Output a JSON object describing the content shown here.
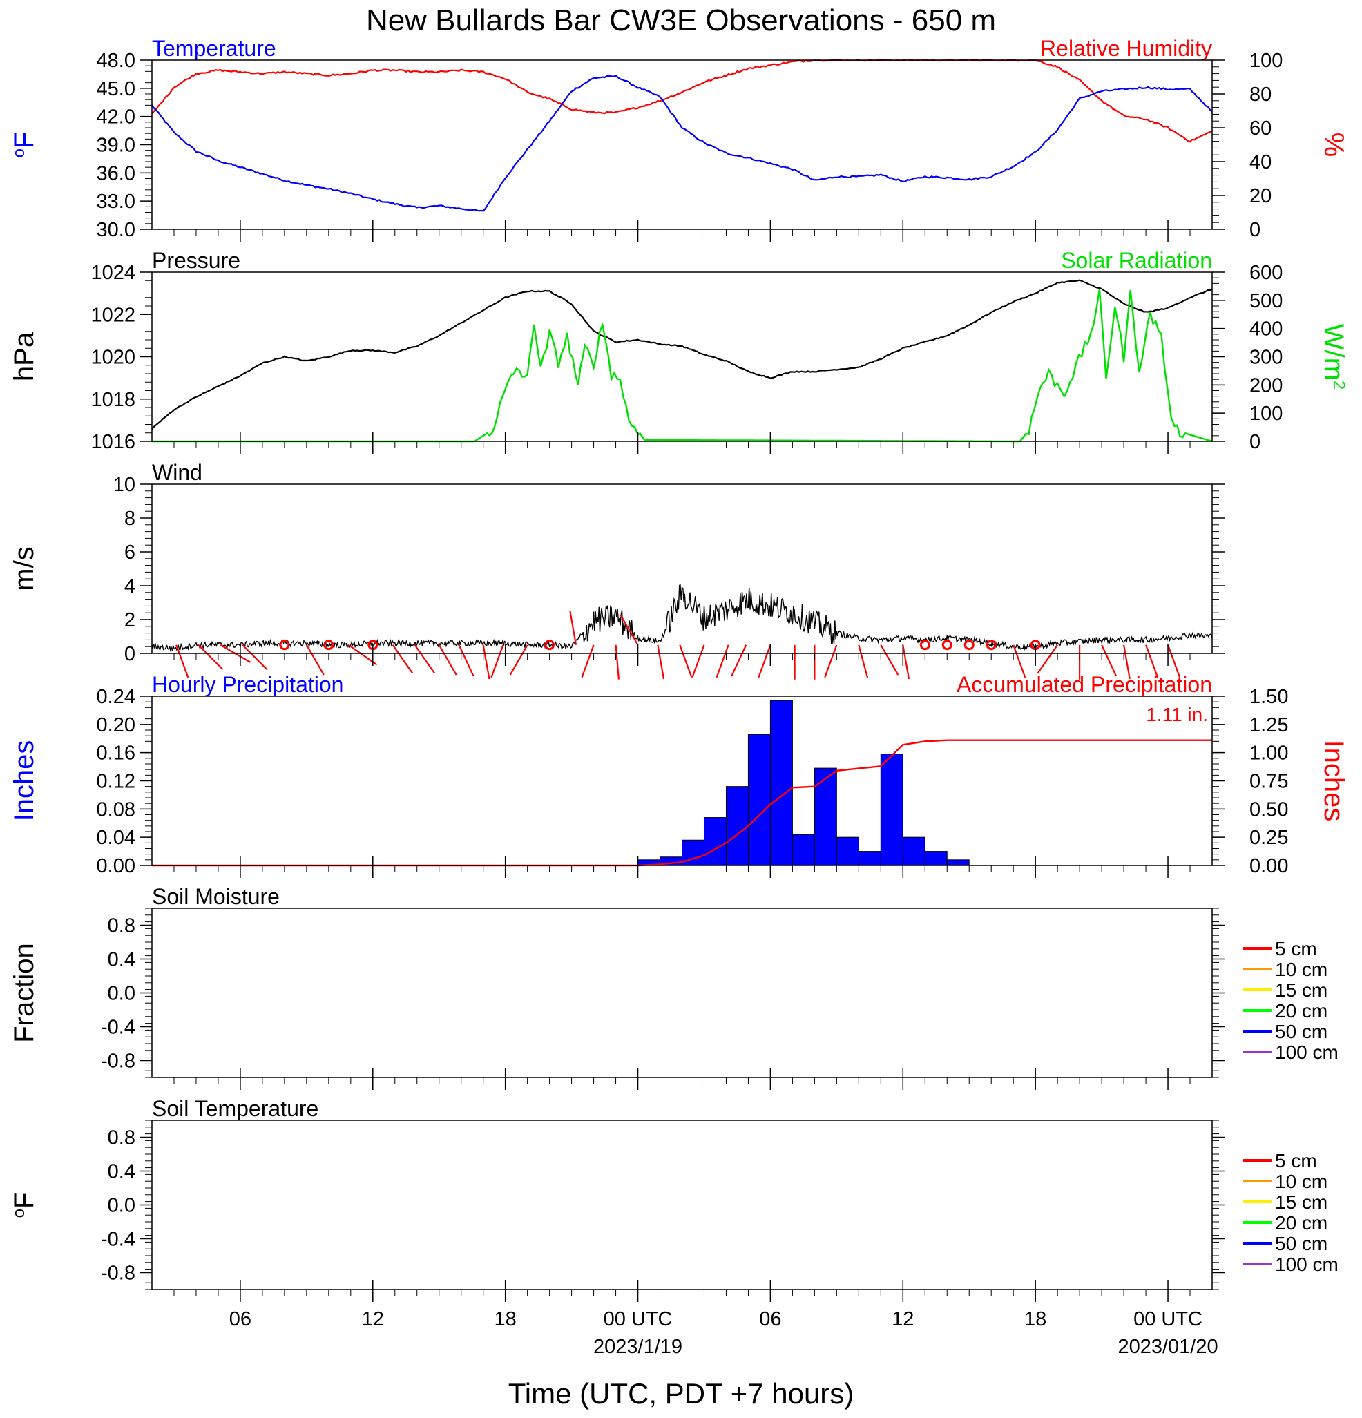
{
  "figure": {
    "title": "New Bullards Bar CW3E Observations - 650 m",
    "xlabel": "Time (UTC, PDT +7 hours)",
    "x_start_utc": "2023-01-18T01:00",
    "x_end_utc": "2023-01-20T01:00",
    "x_ticks": [
      {
        "h": 5,
        "label": "06",
        "date": ""
      },
      {
        "h": 11,
        "label": "12",
        "date": ""
      },
      {
        "h": 17,
        "label": "18",
        "date": ""
      },
      {
        "h": 23,
        "label": "00 UTC",
        "date": "2023/1/19"
      },
      {
        "h": 29,
        "label": "06",
        "date": ""
      },
      {
        "h": 35,
        "label": "12",
        "date": ""
      },
      {
        "h": 41,
        "label": "18",
        "date": ""
      },
      {
        "h": 47,
        "label": "00 UTC",
        "date": "2023/01/20"
      }
    ]
  },
  "colors": {
    "temperature": "#0000ff",
    "humidity": "#ff0000",
    "pressure": "#000000",
    "solar": "#00e000",
    "wind": "#000000",
    "barb": "#ff0000",
    "hourly_precip": "#0000ff",
    "accum_precip": "#ff0000"
  },
  "chart_data": [
    {
      "type": "line",
      "panel": "temperature-humidity",
      "left_title": "Temperature",
      "right_title": "Relative Humidity",
      "left_ylabel": "oF",
      "right_ylabel": "%",
      "left_ylim": [
        30,
        48
      ],
      "right_ylim": [
        0,
        100
      ],
      "left_ticks": [
        "30.0",
        "33.0",
        "36.0",
        "39.0",
        "42.0",
        "45.0",
        "48.0"
      ],
      "right_ticks": [
        "0",
        "20",
        "40",
        "60",
        "80",
        "100"
      ],
      "series": [
        {
          "name": "Temperature",
          "axis": "left",
          "x": [
            1,
            2,
            3,
            4,
            5,
            6,
            7,
            8,
            9,
            10,
            11,
            12,
            13,
            14,
            15,
            16,
            17,
            18,
            19,
            20,
            21,
            22,
            23,
            24,
            25,
            26,
            27,
            28,
            29,
            30,
            31,
            32,
            33,
            34,
            35,
            36,
            37,
            38,
            39,
            40,
            41,
            42,
            43,
            44,
            45,
            46,
            47,
            48,
            49
          ],
          "y": [
            43.2,
            40.3,
            38.3,
            37.3,
            36.6,
            35.9,
            35.2,
            34.7,
            34.3,
            33.8,
            33.2,
            32.7,
            32.3,
            32.5,
            32.2,
            31.9,
            35.5,
            38.5,
            41.5,
            44.7,
            46.1,
            46.3,
            45.1,
            44.1,
            40.8,
            39.2,
            38.1,
            37.6,
            37.0,
            36.4,
            35.2,
            35.6,
            35.6,
            35.8,
            35.1,
            35.6,
            35.5,
            35.3,
            35.6,
            36.7,
            38.2,
            40.6,
            43.9,
            44.7,
            44.9,
            45.1,
            44.9,
            44.9,
            42.5
          ]
        },
        {
          "name": "Relative Humidity",
          "axis": "right",
          "x": [
            1,
            2,
            3,
            4,
            5,
            6,
            7,
            8,
            9,
            10,
            11,
            12,
            13,
            14,
            15,
            16,
            17,
            18,
            19,
            20,
            21,
            22,
            23,
            24,
            25,
            26,
            27,
            28,
            29,
            30,
            31,
            32,
            33,
            34,
            35,
            36,
            37,
            38,
            39,
            40,
            41,
            42,
            43,
            44,
            45,
            46,
            47,
            48,
            49
          ],
          "y": [
            68,
            84,
            92,
            94,
            93,
            92,
            93,
            92,
            91,
            92,
            94,
            94,
            93,
            93,
            94,
            93,
            89,
            81,
            77,
            71,
            69,
            69,
            72,
            76,
            81,
            87,
            91,
            95,
            97,
            99,
            100,
            100,
            100,
            100,
            100,
            100,
            100,
            100,
            100,
            100,
            100,
            96,
            88,
            76,
            67,
            65,
            60,
            52,
            58
          ]
        }
      ]
    },
    {
      "type": "line",
      "panel": "pressure-solar",
      "left_title": "Pressure",
      "right_title": "Solar Radiation",
      "left_ylabel": "hPa",
      "right_ylabel": "W/m2",
      "left_ylim": [
        1016,
        1024
      ],
      "right_ylim": [
        0,
        600
      ],
      "left_ticks": [
        "1016",
        "1018",
        "1020",
        "1022",
        "1024"
      ],
      "right_ticks": [
        "0",
        "100",
        "200",
        "300",
        "400",
        "500",
        "600"
      ],
      "series": [
        {
          "name": "Pressure",
          "axis": "left",
          "x": [
            1,
            2,
            3,
            4,
            5,
            6,
            7,
            8,
            9,
            10,
            11,
            12,
            13,
            14,
            15,
            16,
            17,
            18,
            19,
            20,
            21,
            22,
            23,
            24,
            25,
            26,
            27,
            28,
            29,
            30,
            31,
            32,
            33,
            34,
            35,
            36,
            37,
            38,
            39,
            40,
            41,
            42,
            43,
            44,
            45,
            46,
            47,
            48,
            49
          ],
          "y": [
            1016.6,
            1017.5,
            1018.1,
            1018.6,
            1019.1,
            1019.7,
            1020.0,
            1019.8,
            1020.0,
            1020.3,
            1020.3,
            1020.2,
            1020.5,
            1021.0,
            1021.6,
            1022.2,
            1022.8,
            1023.1,
            1023.1,
            1022.5,
            1021.2,
            1020.7,
            1020.8,
            1020.6,
            1020.5,
            1020.1,
            1019.8,
            1019.3,
            1019.0,
            1019.3,
            1019.3,
            1019.4,
            1019.5,
            1019.9,
            1020.4,
            1020.7,
            1021.0,
            1021.5,
            1022.1,
            1022.6,
            1023.0,
            1023.5,
            1023.6,
            1023.2,
            1022.5,
            1022.1,
            1022.3,
            1022.8,
            1023.2
          ]
        },
        {
          "name": "Solar Radiation",
          "axis": "right",
          "x": [
            1,
            15.6,
            16.4,
            17,
            17.5,
            18,
            18.3,
            18.6,
            19,
            19.4,
            19.8,
            20.3,
            20.6,
            21,
            21.4,
            21.8,
            22.2,
            22.6,
            23,
            23.3,
            40.3,
            40.7,
            41.2,
            41.6,
            42,
            42.3,
            42.7,
            43.1,
            43.5,
            43.9,
            44.2,
            44.6,
            45,
            45.3,
            45.7,
            46.2,
            46.7,
            47,
            47.3,
            49
          ],
          "y": [
            0,
            0,
            40,
            180,
            260,
            220,
            430,
            250,
            380,
            280,
            370,
            200,
            330,
            280,
            420,
            240,
            220,
            70,
            40,
            5,
            0,
            40,
            190,
            240,
            200,
            170,
            240,
            310,
            380,
            520,
            230,
            480,
            300,
            520,
            260,
            450,
            380,
            160,
            40,
            0
          ]
        }
      ]
    },
    {
      "type": "line",
      "panel": "wind",
      "left_title": "Wind",
      "left_ylabel": "m/s",
      "ylim": [
        0,
        10
      ],
      "left_ticks": [
        "0",
        "2",
        "4",
        "6",
        "8",
        "10"
      ],
      "series": [
        {
          "name": "Wind",
          "x": [
            1,
            2,
            3,
            4,
            5,
            6,
            7,
            8,
            9,
            10,
            11,
            12,
            13,
            14,
            15,
            16,
            17,
            18,
            19,
            20,
            21,
            22,
            23,
            24,
            25,
            26,
            27,
            28,
            29,
            30,
            31,
            32,
            33,
            34,
            35,
            36,
            37,
            38,
            39,
            40,
            41,
            42,
            43,
            44,
            45,
            46,
            47,
            48,
            49
          ],
          "y": [
            0.4,
            0.3,
            0.5,
            0.5,
            0.5,
            0.6,
            0.6,
            0.6,
            0.5,
            0.5,
            0.6,
            0.6,
            0.6,
            0.6,
            0.6,
            0.6,
            0.6,
            0.5,
            0.5,
            0.4,
            1.9,
            2.2,
            0.9,
            0.7,
            3.6,
            2.1,
            2.6,
            3.2,
            2.8,
            2.4,
            1.8,
            1.2,
            0.9,
            0.8,
            0.9,
            0.8,
            0.9,
            0.8,
            0.6,
            0.4,
            0.4,
            0.6,
            0.7,
            0.8,
            0.8,
            0.8,
            0.9,
            1.1,
            1.0
          ]
        }
      ],
      "barbs": [
        {
          "h": 2.1,
          "dir": 160,
          "calm": false
        },
        {
          "h": 3.1,
          "dir": 135,
          "calm": false
        },
        {
          "h": 4.1,
          "dir": 120,
          "calm": false
        },
        {
          "h": 5.1,
          "dir": 135,
          "calm": false
        },
        {
          "h": 7.0,
          "dir": 0,
          "calm": true
        },
        {
          "h": 8.0,
          "dir": 150,
          "calm": false
        },
        {
          "h": 9.0,
          "dir": 0,
          "calm": true
        },
        {
          "h": 9.9,
          "dir": 125,
          "calm": false
        },
        {
          "h": 11.0,
          "dir": 0,
          "calm": true
        },
        {
          "h": 11.9,
          "dir": 145,
          "calm": false
        },
        {
          "h": 12.9,
          "dir": 145,
          "calm": false
        },
        {
          "h": 14.0,
          "dir": 150,
          "calm": false
        },
        {
          "h": 14.9,
          "dir": 155,
          "calm": false
        },
        {
          "h": 16.0,
          "dir": 170,
          "calm": false
        },
        {
          "h": 16.9,
          "dir": 200,
          "calm": false
        },
        {
          "h": 18.0,
          "dir": 210,
          "calm": false
        },
        {
          "h": 19.0,
          "dir": 0,
          "calm": true
        },
        {
          "h": 20.2,
          "dir": 350,
          "calm": false
        },
        {
          "h": 21.0,
          "dir": 200,
          "calm": false
        },
        {
          "h": 22.0,
          "dir": 175,
          "calm": false
        },
        {
          "h": 23.0,
          "dir": 330,
          "calm": false
        },
        {
          "h": 23.9,
          "dir": 170,
          "calm": false
        },
        {
          "h": 24.9,
          "dir": 160,
          "calm": false
        },
        {
          "h": 26.0,
          "dir": 200,
          "calm": false
        },
        {
          "h": 27.1,
          "dir": 200,
          "calm": false
        },
        {
          "h": 27.9,
          "dir": 205,
          "calm": false
        },
        {
          "h": 29.0,
          "dir": 200,
          "calm": false
        },
        {
          "h": 30.1,
          "dir": 180,
          "calm": false
        },
        {
          "h": 31.0,
          "dir": 180,
          "calm": false
        },
        {
          "h": 32.0,
          "dir": 200,
          "calm": false
        },
        {
          "h": 33.0,
          "dir": 165,
          "calm": false
        },
        {
          "h": 34.0,
          "dir": 150,
          "calm": false
        },
        {
          "h": 35.0,
          "dir": 170,
          "calm": false
        },
        {
          "h": 36.0,
          "dir": 0,
          "calm": true
        },
        {
          "h": 37.0,
          "dir": 0,
          "calm": true
        },
        {
          "h": 38.0,
          "dir": 0,
          "calm": true
        },
        {
          "h": 39.0,
          "dir": 0,
          "calm": true
        },
        {
          "h": 40.0,
          "dir": 160,
          "calm": false
        },
        {
          "h": 41.0,
          "dir": 0,
          "calm": true
        },
        {
          "h": 42.0,
          "dir": 215,
          "calm": false
        },
        {
          "h": 43.0,
          "dir": 180,
          "calm": false
        },
        {
          "h": 44.0,
          "dir": 155,
          "calm": false
        },
        {
          "h": 45.0,
          "dir": 170,
          "calm": false
        },
        {
          "h": 46.0,
          "dir": 160,
          "calm": false
        },
        {
          "h": 47.0,
          "dir": 160,
          "calm": false
        }
      ]
    },
    {
      "type": "bar",
      "panel": "precipitation",
      "left_title": "Hourly Precipitation",
      "right_title": "Accumulated Precipitation",
      "left_ylabel": "Inches",
      "right_ylabel": "Inches",
      "annotation": "1.11 in.",
      "left_ylim": [
        0,
        0.24
      ],
      "right_ylim": [
        0,
        1.5
      ],
      "left_ticks": [
        "0.00",
        "0.04",
        "0.08",
        "0.12",
        "0.16",
        "0.20",
        "0.24"
      ],
      "right_ticks": [
        "0.00",
        "0.25",
        "0.50",
        "0.75",
        "1.00",
        "1.25",
        "1.50"
      ],
      "series": [
        {
          "name": "Hourly Precipitation",
          "axis": "left",
          "type": "bar",
          "bins": [
            23,
            24,
            25,
            26,
            27,
            28,
            29,
            30,
            31,
            32,
            33,
            34,
            35,
            36,
            37
          ],
          "values": [
            0.008,
            0.012,
            0.036,
            0.068,
            0.112,
            0.186,
            0.234,
            0.044,
            0.138,
            0.04,
            0.02,
            0.158,
            0.04,
            0.02,
            0.008
          ]
        },
        {
          "name": "Accumulated Precipitation",
          "axis": "right",
          "type": "line",
          "x": [
            1,
            23,
            24,
            25,
            26,
            27,
            28,
            29,
            30,
            31,
            32,
            33,
            34,
            35,
            36,
            37,
            38,
            49
          ],
          "y": [
            0,
            0,
            0.01,
            0.03,
            0.09,
            0.2,
            0.35,
            0.54,
            0.69,
            0.7,
            0.84,
            0.86,
            0.88,
            1.07,
            1.1,
            1.11,
            1.11,
            1.11
          ]
        }
      ]
    },
    {
      "type": "line",
      "panel": "soil-moisture",
      "left_title": "Soil Moisture",
      "left_ylabel": "Fraction",
      "ylim": [
        -1,
        1
      ],
      "left_ticks": [
        "-0.8",
        "-0.4",
        "0.0",
        "0.4",
        "0.8"
      ],
      "legend": [
        {
          "name": "5 cm",
          "color": "#ff0000"
        },
        {
          "name": "10 cm",
          "color": "#ff9900"
        },
        {
          "name": "15 cm",
          "color": "#ffee00"
        },
        {
          "name": "20 cm",
          "color": "#00ff00"
        },
        {
          "name": "50 cm",
          "color": "#0000ff"
        },
        {
          "name": "100 cm",
          "color": "#9933cc"
        }
      ],
      "series": []
    },
    {
      "type": "line",
      "panel": "soil-temperature",
      "left_title": "Soil Temperature",
      "left_ylabel": "oF",
      "ylim": [
        -1,
        1
      ],
      "left_ticks": [
        "-0.8",
        "-0.4",
        "0.0",
        "0.4",
        "0.8"
      ],
      "legend": [
        {
          "name": "5 cm",
          "color": "#ff0000"
        },
        {
          "name": "10 cm",
          "color": "#ff9900"
        },
        {
          "name": "15 cm",
          "color": "#ffee00"
        },
        {
          "name": "20 cm",
          "color": "#00ff00"
        },
        {
          "name": "50 cm",
          "color": "#0000ff"
        },
        {
          "name": "100 cm",
          "color": "#9933cc"
        }
      ],
      "series": []
    }
  ]
}
